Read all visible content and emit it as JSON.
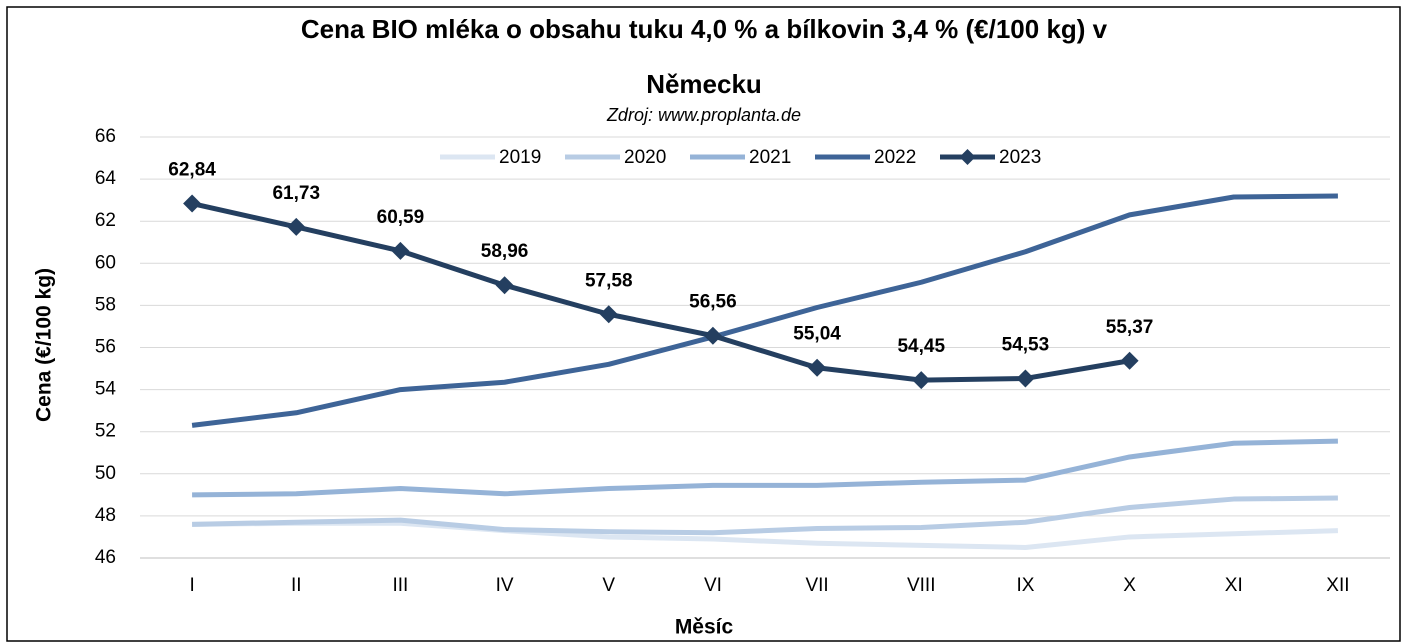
{
  "chart_data": {
    "type": "line",
    "title": [
      "Cena BIO mléka o obsahu tuku 4,0 % a bílkovin 3,4 % (€/100 kg) v",
      "Německu"
    ],
    "subtitle": "Zdroj: www.proplanta.de",
    "x_label": "Měsíc",
    "y_label": "Cena (€/100 kg)",
    "categories": [
      "I",
      "II",
      "III",
      "IV",
      "V",
      "VI",
      "VII",
      "VIII",
      "IX",
      "X",
      "XI",
      "XII"
    ],
    "ylim": [
      46,
      66
    ],
    "yticks": [
      46,
      48,
      50,
      52,
      54,
      56,
      58,
      60,
      62,
      64,
      66
    ],
    "grid": true,
    "legend": "top",
    "series": [
      {
        "name": "2019",
        "color": "#dce6f2",
        "values": [
          47.6,
          47.65,
          47.65,
          47.3,
          47.0,
          46.9,
          46.7,
          46.6,
          46.5,
          47.0,
          47.15,
          47.3
        ]
      },
      {
        "name": "2020",
        "color": "#b8cce4",
        "values": [
          47.6,
          47.7,
          47.8,
          47.35,
          47.25,
          47.2,
          47.4,
          47.45,
          47.7,
          48.4,
          48.8,
          48.85
        ]
      },
      {
        "name": "2021",
        "color": "#95b3d7",
        "values": [
          49.0,
          49.05,
          49.3,
          49.05,
          49.3,
          49.45,
          49.45,
          49.6,
          49.7,
          50.8,
          51.45,
          51.55
        ]
      },
      {
        "name": "2022",
        "color": "#3e6497",
        "values": [
          52.3,
          52.9,
          54.0,
          54.35,
          55.2,
          56.5,
          57.9,
          59.1,
          60.55,
          62.3,
          63.15,
          63.2
        ]
      },
      {
        "name": "2023",
        "color": "#243f60",
        "marker": "diamond",
        "values": [
          62.84,
          61.73,
          60.59,
          58.96,
          57.58,
          56.56,
          55.04,
          54.45,
          54.53,
          55.37,
          null,
          null
        ],
        "value_labels": [
          "62,84",
          "61,73",
          "60,59",
          "58,96",
          "57,58",
          "56,56",
          "55,04",
          "54,45",
          "54,53",
          "55,37",
          null,
          null
        ]
      }
    ]
  }
}
